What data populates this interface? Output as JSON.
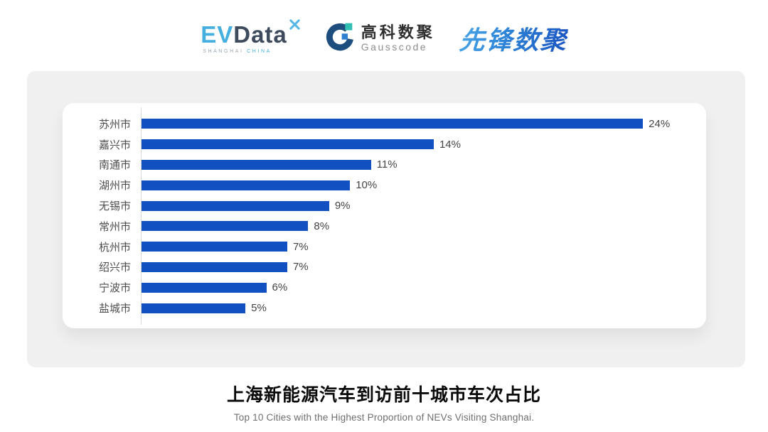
{
  "header": {
    "evdata": {
      "part1": "EV",
      "part2": "Data",
      "sub1": "SHANGHAI",
      "sub2": "CHINA"
    },
    "gausscode": {
      "cn": "高科数聚",
      "en": "Gausscode"
    },
    "pioneer": {
      "text": "先锋数聚"
    }
  },
  "chart_data": {
    "type": "bar",
    "orientation": "horizontal",
    "title": "上海新能源汽车到访前十城市车次占比",
    "subtitle": "Top 10 Cities with the Highest Proportion of  NEVs Visiting Shanghai.",
    "categories": [
      "苏州市",
      "嘉兴市",
      "南通市",
      "湖州市",
      "无锡市",
      "常州市",
      "杭州市",
      "绍兴市",
      "宁波市",
      "盐城市"
    ],
    "values": [
      24,
      14,
      11,
      10,
      9,
      8,
      7,
      7,
      6,
      5
    ],
    "value_labels": [
      "24%",
      "14%",
      "11%",
      "10%",
      "9%",
      "8%",
      "7%",
      "7%",
      "6%",
      "5%"
    ],
    "xlim": [
      0,
      26
    ],
    "bar_color": "#1150c0",
    "grid": false,
    "legend": false
  },
  "colors": {
    "panel_bg": "#f0f0f0",
    "card_bg": "#ffffff",
    "axis_line": "#d9d9d9",
    "evdata_blue": "#45b0e0",
    "evdata_dark": "#3d4b5c",
    "gausscode_navy": "#1d4e7e",
    "gausscode_teal": "#2fbfb3",
    "gausscode_blue": "#2f7fd0",
    "pioneer_blue": "#2f86d8"
  }
}
